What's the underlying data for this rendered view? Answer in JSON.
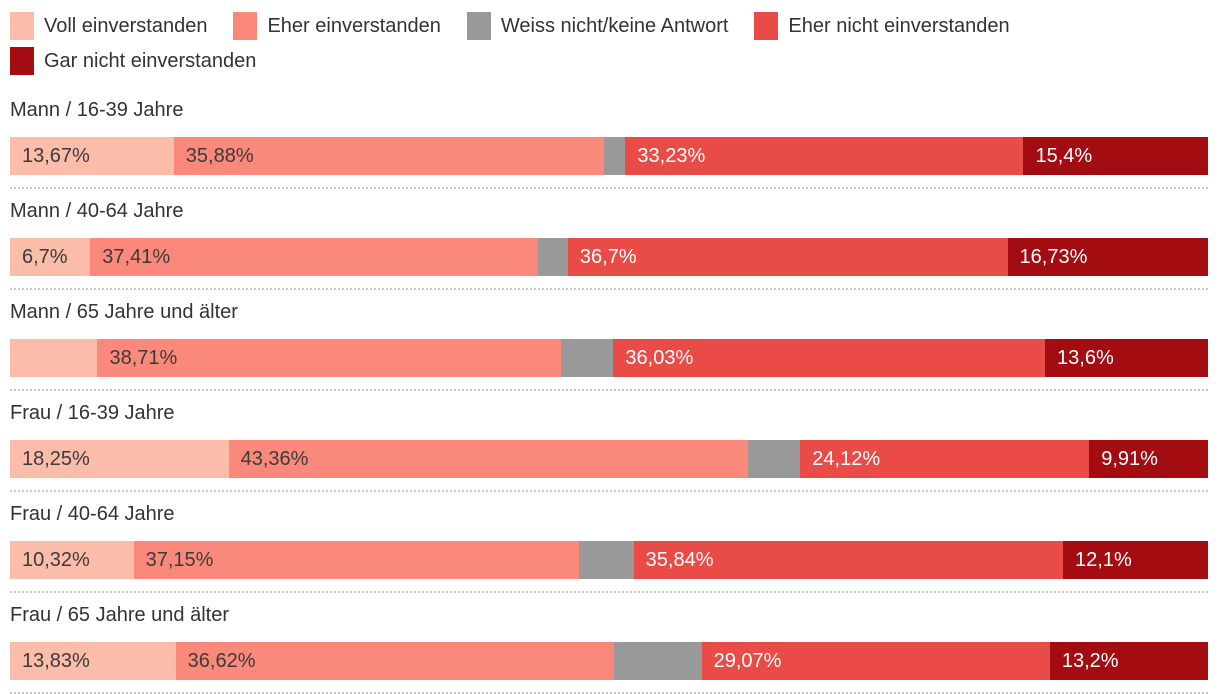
{
  "legend": {
    "items": [
      {
        "label": "Voll einverstanden",
        "color": "#FBBCA9"
      },
      {
        "label": "Eher einverstanden",
        "color": "#FB897B"
      },
      {
        "label": "Weiss nicht/keine Antwort",
        "color": "#999999"
      },
      {
        "label": "Eher nicht einverstanden",
        "color": "#E94C47"
      },
      {
        "label": "Gar nicht einverstanden",
        "color": "#A30D12"
      }
    ]
  },
  "chart_data": {
    "type": "bar",
    "stacked": true,
    "orientation": "horizontal",
    "unit": "percent",
    "xlim": [
      0,
      100
    ],
    "legend_position": "top",
    "grid": false,
    "series_names": [
      "Voll einverstanden",
      "Eher einverstanden",
      "Weiss nicht/keine Antwort",
      "Eher nicht einverstanden",
      "Gar nicht einverstanden"
    ],
    "series_colors": [
      "#FBBCA9",
      "#FB897B",
      "#999999",
      "#E94C47",
      "#A30D12"
    ],
    "series_text_colors": [
      "#3B3B3B",
      "#3B3B3B",
      "#FFFFFF",
      "#FFFFFF",
      "#FFFFFF"
    ],
    "categories": [
      "Mann / 16-39 Jahre",
      "Mann / 40-64 Jahre",
      "Mann / 65 Jahre und älter",
      "Frau / 16-39 Jahre",
      "Frau / 40-64 Jahre",
      "Frau / 65 Jahre und älter"
    ],
    "rows": [
      {
        "category": "Mann / 16-39 Jahre",
        "values": [
          13.67,
          35.88,
          1.82,
          33.23,
          15.4
        ],
        "labels": [
          "13,67%",
          "35,88%",
          "",
          "33,23%",
          "15,4%"
        ]
      },
      {
        "category": "Mann / 40-64 Jahre",
        "values": [
          6.7,
          37.41,
          2.46,
          36.7,
          16.73
        ],
        "labels": [
          "6,7%",
          "37,41%",
          "",
          "36,7%",
          "16,73%"
        ]
      },
      {
        "category": "Mann / 65 Jahre und älter",
        "values": [
          7.3,
          38.71,
          4.36,
          36.03,
          13.6
        ],
        "labels": [
          "",
          "38,71%",
          "",
          "36,03%",
          "13,6%"
        ]
      },
      {
        "category": "Frau / 16-39 Jahre",
        "values": [
          18.25,
          43.36,
          4.36,
          24.12,
          9.91
        ],
        "labels": [
          "18,25%",
          "43,36%",
          "",
          "24,12%",
          "9,91%"
        ]
      },
      {
        "category": "Frau / 40-64 Jahre",
        "values": [
          10.32,
          37.15,
          4.59,
          35.84,
          12.1
        ],
        "labels": [
          "10,32%",
          "37,15%",
          "",
          "35,84%",
          "12,1%"
        ]
      },
      {
        "category": "Frau / 65 Jahre und älter",
        "values": [
          13.83,
          36.62,
          7.28,
          29.07,
          13.2
        ],
        "labels": [
          "13,83%",
          "36,62%",
          "",
          "29,07%",
          "13,2%"
        ]
      }
    ]
  },
  "colors": {
    "background": "#FFFFFF",
    "separator": "#C9C9C9",
    "text": "#333333"
  }
}
